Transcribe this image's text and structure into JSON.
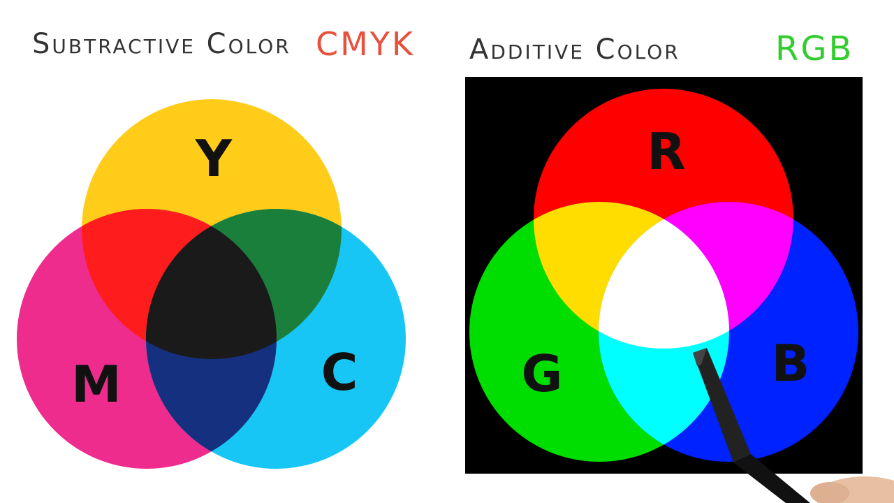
{
  "subtractive": {
    "title": "Subtractive Color",
    "tag": "CMYK",
    "tag_color": "#e8503c",
    "labels": {
      "yellow": "Y",
      "magenta": "M",
      "cyan": "C"
    },
    "colors": {
      "yellow": "#ffcc1a",
      "magenta": "#ed2c8e",
      "cyan": "#18c6f5",
      "yellow_magenta": "#ff1c1c",
      "yellow_cyan": "#1a7f3a",
      "magenta_cyan": "#15307f",
      "center": "#1a1a1a"
    }
  },
  "additive": {
    "title": "Additive Color",
    "tag": "RGB",
    "tag_color": "#33cc2e",
    "background": "#000000",
    "labels": {
      "red": "R",
      "green": "G",
      "blue": "B"
    },
    "colors": {
      "red": "#ff0000",
      "green": "#00dd00",
      "blue": "#0022ff",
      "red_green": "#ffdd00",
      "red_blue": "#ff00ff",
      "green_blue": "#00ffff",
      "center": "#ffffff"
    }
  }
}
